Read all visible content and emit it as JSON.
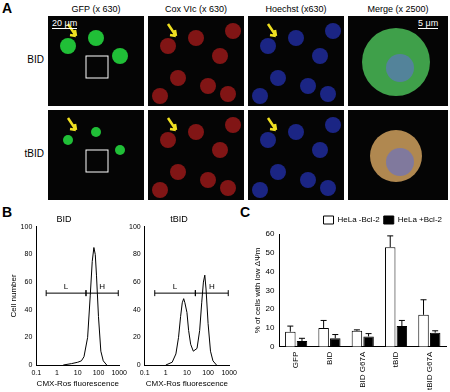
{
  "panel_a": {
    "label": "A",
    "columns": [
      "GFP (x 630)",
      "Cox VIc (x 630)",
      "Hoechst (x630)",
      "Merge (x 2500)"
    ],
    "rows": [
      "BID",
      "tBID"
    ],
    "scale_bars": [
      "20 μm",
      "5 μm"
    ]
  },
  "chart_data": [
    {
      "panel": "B",
      "type": "line",
      "title": "BID",
      "x_label": "CMX-Ros fluorescence",
      "y_label": "Cell number",
      "log": "x",
      "grid": false,
      "color": "#000000",
      "x": [
        2,
        5,
        10,
        15,
        20,
        30,
        40,
        50,
        60,
        70,
        80,
        100,
        130,
        170,
        250
      ],
      "values": [
        0,
        1,
        2,
        3,
        6,
        20,
        50,
        75,
        85,
        80,
        65,
        35,
        10,
        3,
        0
      ],
      "xlim": [
        0.1,
        1000
      ],
      "xticks": [
        0.1,
        1,
        10,
        100,
        1000
      ],
      "ylim": [
        0,
        100
      ],
      "yticks": [
        0,
        20,
        40,
        60,
        80,
        100
      ],
      "gates": [
        {
          "label": "L",
          "from": 0.3,
          "to": 25,
          "y": 52
        },
        {
          "label": "H",
          "from": 25,
          "to": 900,
          "y": 52
        }
      ]
    },
    {
      "panel": "",
      "type": "line",
      "title": "tBID",
      "x_label": "CMX-Ros fluorescence",
      "log": "x",
      "grid": false,
      "color": "#000000",
      "x": [
        1,
        2,
        3,
        4,
        5,
        6,
        7,
        8,
        10,
        12,
        15,
        20,
        30,
        40,
        50,
        60,
        70,
        80,
        100,
        130,
        170,
        250
      ],
      "values": [
        0,
        2,
        8,
        20,
        35,
        45,
        48,
        45,
        38,
        25,
        15,
        10,
        12,
        25,
        45,
        60,
        65,
        55,
        30,
        10,
        3,
        0
      ],
      "xlim": [
        0.1,
        1000
      ],
      "xticks": [
        0.1,
        1,
        10,
        100,
        1000
      ],
      "ylim": [
        0,
        100
      ],
      "yticks": [
        0,
        20,
        40,
        60,
        80,
        100
      ],
      "gates": [
        {
          "label": "L",
          "from": 0.3,
          "to": 25,
          "y": 52
        },
        {
          "label": "H",
          "from": 25,
          "to": 900,
          "y": 52
        }
      ]
    },
    {
      "panel": "C",
      "type": "bar",
      "y_label": "% of cells with low ΔΨm",
      "grid": false,
      "legend": "upper right",
      "categories": [
        "GFP",
        "BID",
        "BID G67A",
        "tBID",
        "tBID G67A"
      ],
      "series": [
        {
          "name": "HeLa -Bcl-2",
          "color": "#ffffff",
          "values": [
            8,
            10,
            8.5,
            53,
            17
          ],
          "errors": [
            3,
            4,
            0.5,
            6,
            8
          ]
        },
        {
          "name": "HeLa +Bcl-2",
          "color": "#000000",
          "values": [
            3,
            4.5,
            5.5,
            11,
            7.5
          ],
          "errors": [
            1.5,
            2,
            1.5,
            3,
            1
          ]
        }
      ],
      "ylim": [
        0,
        60
      ],
      "yticks": [
        0,
        10,
        20,
        30,
        40,
        50,
        60
      ]
    }
  ]
}
